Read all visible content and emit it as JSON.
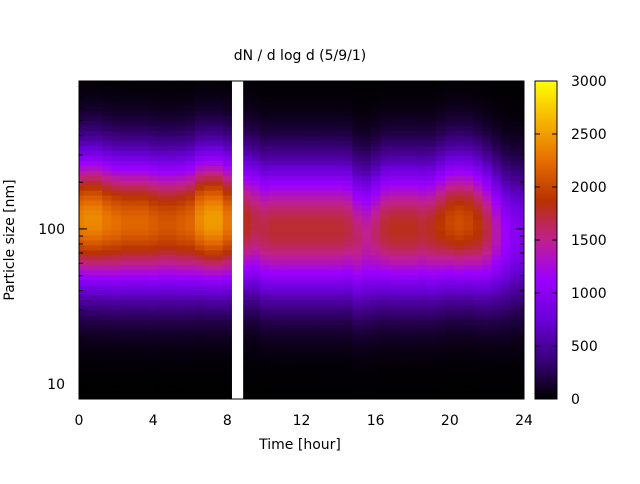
{
  "chart_data": {
    "type": "heatmap",
    "title": "dN / d log d (5/9/1)",
    "xlabel": "Time [hour]",
    "ylabel": "Particle size [nm]",
    "xlim": [
      0,
      24
    ],
    "ylim": [
      8,
      900
    ],
    "yscale": "log",
    "x_ticks": [
      0,
      4,
      8,
      12,
      16,
      20,
      24
    ],
    "x_tick_labels": [
      "0",
      "4",
      "8",
      "12",
      "16",
      "20",
      "24"
    ],
    "y_ticks": [
      10,
      100
    ],
    "y_tick_labels": [
      "10",
      "100"
    ],
    "colorbar": {
      "range": [
        0,
        3000
      ],
      "ticks": [
        0,
        500,
        1000,
        1500,
        2000,
        2500,
        3000
      ],
      "tick_labels": [
        "0",
        "500",
        "1000",
        "1500",
        "2000",
        "2500",
        "3000"
      ],
      "colormap": [
        "#000000",
        "#3a007a",
        "#6a00d8",
        "#9b00ff",
        "#c0208f",
        "#b83200",
        "#e66e00",
        "#f5b400",
        "#ffff00"
      ]
    },
    "grid": false,
    "legend": "none",
    "data_gaps_hours": [
      [
        8.25,
        8.85
      ]
    ],
    "time_columns_hours": [
      0,
      0.5,
      1,
      1.5,
      2,
      2.5,
      3,
      3.5,
      4,
      4.5,
      5,
      5.5,
      6,
      6.5,
      7,
      7.5,
      8,
      9,
      9.5,
      10,
      10.5,
      11,
      11.5,
      12,
      12.5,
      13,
      13.5,
      14,
      14.5,
      15,
      15.5,
      16,
      16.5,
      17,
      17.5,
      18,
      18.5,
      19,
      19.5,
      20,
      20.5,
      21,
      21.5,
      22,
      22.5,
      23,
      23.5,
      24
    ],
    "mode_diameter_nm": [
      115,
      115,
      115,
      112,
      110,
      110,
      110,
      110,
      108,
      108,
      108,
      108,
      110,
      115,
      115,
      115,
      112,
      110,
      108,
      100,
      100,
      100,
      100,
      100,
      100,
      100,
      100,
      100,
      100,
      90,
      90,
      95,
      100,
      100,
      100,
      100,
      100,
      100,
      105,
      110,
      110,
      110,
      105,
      100,
      95,
      90,
      90,
      90
    ],
    "peak_dN_dlogd": [
      2350,
      2400,
      2400,
      2300,
      2250,
      2200,
      2200,
      2200,
      2150,
      2100,
      2100,
      2150,
      2200,
      2400,
      2500,
      2500,
      2300,
      1800,
      1700,
      1700,
      1750,
      1750,
      1750,
      1750,
      1750,
      1750,
      1750,
      1750,
      1700,
      1600,
      1500,
      1600,
      1750,
      1800,
      1800,
      1800,
      1750,
      1800,
      1900,
      2000,
      2050,
      2000,
      1900,
      1700,
      1400,
      1150,
      1000,
      950
    ]
  }
}
